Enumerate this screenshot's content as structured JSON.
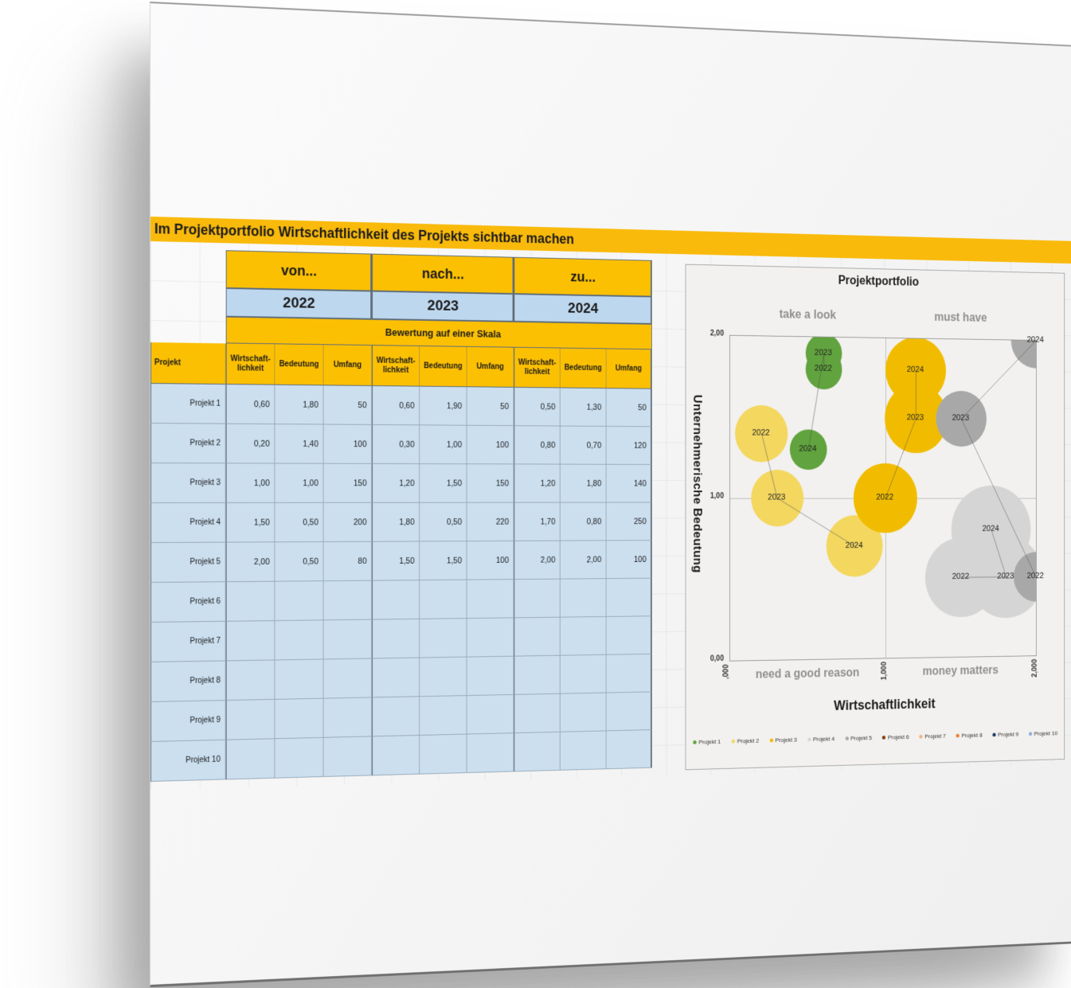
{
  "banner": {
    "title": "Im Projektportfolio Wirtschaftlichkeit des Projekts sichtbar machen",
    "color": "#f9ba0b"
  },
  "table": {
    "project_header": "Projekt",
    "scale_header": "Bewertung auf einer Skala",
    "groups": [
      {
        "label": "von...",
        "year": "2022"
      },
      {
        "label": "nach...",
        "year": "2023"
      },
      {
        "label": "zu...",
        "year": "2024"
      }
    ],
    "sub_headers": [
      "Wirtschaft-\nlichkeit",
      "Bedeutung",
      "Umfang"
    ],
    "rows": [
      {
        "project": "Projekt 1",
        "values": [
          "0,60",
          "1,80",
          "50",
          "0,60",
          "1,90",
          "50",
          "0,50",
          "1,30",
          "50"
        ]
      },
      {
        "project": "Projekt 2",
        "values": [
          "0,20",
          "1,40",
          "100",
          "0,30",
          "1,00",
          "100",
          "0,80",
          "0,70",
          "120"
        ]
      },
      {
        "project": "Projekt 3",
        "values": [
          "1,00",
          "1,00",
          "150",
          "1,20",
          "1,50",
          "150",
          "1,20",
          "1,80",
          "140"
        ]
      },
      {
        "project": "Projekt 4",
        "values": [
          "1,50",
          "0,50",
          "200",
          "1,80",
          "0,50",
          "220",
          "1,70",
          "0,80",
          "250"
        ]
      },
      {
        "project": "Projekt 5",
        "values": [
          "2,00",
          "0,50",
          "80",
          "1,50",
          "1,50",
          "100",
          "2,00",
          "2,00",
          "100"
        ]
      },
      {
        "project": "Projekt 6",
        "values": [
          "",
          "",
          "",
          "",
          "",
          "",
          "",
          "",
          ""
        ]
      },
      {
        "project": "Projekt 7",
        "values": [
          "",
          "",
          "",
          "",
          "",
          "",
          "",
          "",
          ""
        ]
      },
      {
        "project": "Projekt 8",
        "values": [
          "",
          "",
          "",
          "",
          "",
          "",
          "",
          "",
          ""
        ]
      },
      {
        "project": "Projekt 9",
        "values": [
          "",
          "",
          "",
          "",
          "",
          "",
          "",
          "",
          ""
        ]
      },
      {
        "project": "Projekt 10",
        "values": [
          "",
          "",
          "",
          "",
          "",
          "",
          "",
          "",
          ""
        ]
      }
    ],
    "colors": {
      "header_yellow": "#fcc003",
      "year_blue": "#bdd7ee",
      "body_blue": "#cbdfef"
    }
  },
  "chart_data": {
    "type": "scatter",
    "subtype": "bubble",
    "title": "Projektportfolio",
    "xlabel": "Wirtschaftlichkeit",
    "ylabel": "Unternehmerische Bedeutung",
    "xlim": [
      0,
      2
    ],
    "ylim": [
      0,
      2
    ],
    "x_ticks": [
      ",000",
      "1,000",
      "2,000"
    ],
    "y_ticks": [
      "0,00",
      "1,00",
      "2,00"
    ],
    "grid": false,
    "quadrant_dividers": {
      "x": 1.0,
      "y": 1.0
    },
    "quadrant_labels": {
      "top_left": "take a look",
      "top_right": "must have",
      "bottom_left": "need a good reason",
      "bottom_right": "money matters"
    },
    "legend_position": "bottom",
    "series": [
      {
        "name": "Projekt 1",
        "color": "#61a33e",
        "points": [
          {
            "label": "2022",
            "x": 0.6,
            "y": 1.8,
            "size": 50
          },
          {
            "label": "2023",
            "x": 0.6,
            "y": 1.9,
            "size": 50
          },
          {
            "label": "2024",
            "x": 0.5,
            "y": 1.3,
            "size": 50
          }
        ]
      },
      {
        "name": "Projekt 2",
        "color": "#f3d75f",
        "points": [
          {
            "label": "2022",
            "x": 0.2,
            "y": 1.4,
            "size": 100
          },
          {
            "label": "2023",
            "x": 0.3,
            "y": 1.0,
            "size": 100
          },
          {
            "label": "2024",
            "x": 0.8,
            "y": 0.7,
            "size": 120
          }
        ]
      },
      {
        "name": "Projekt 3",
        "color": "#f1bc00",
        "points": [
          {
            "label": "2022",
            "x": 1.0,
            "y": 1.0,
            "size": 150
          },
          {
            "label": "2023",
            "x": 1.2,
            "y": 1.5,
            "size": 150
          },
          {
            "label": "2024",
            "x": 1.2,
            "y": 1.8,
            "size": 140
          }
        ]
      },
      {
        "name": "Projekt 4",
        "color": "#d5d5d5",
        "points": [
          {
            "label": "2022",
            "x": 1.5,
            "y": 0.5,
            "size": 200
          },
          {
            "label": "2023",
            "x": 1.8,
            "y": 0.5,
            "size": 220
          },
          {
            "label": "2024",
            "x": 1.7,
            "y": 0.8,
            "size": 250
          }
        ]
      },
      {
        "name": "Projekt 5",
        "color": "#a8a8a8",
        "points": [
          {
            "label": "2022",
            "x": 2.0,
            "y": 0.5,
            "size": 80
          },
          {
            "label": "2023",
            "x": 1.5,
            "y": 1.5,
            "size": 100
          },
          {
            "label": "2024",
            "x": 2.0,
            "y": 2.0,
            "size": 100
          }
        ]
      },
      {
        "name": "Projekt 6",
        "color": "#843c0c",
        "points": []
      },
      {
        "name": "Projekt 7",
        "color": "#f4b183",
        "points": []
      },
      {
        "name": "Projekt 8",
        "color": "#ed7d31",
        "points": []
      },
      {
        "name": "Projekt 9",
        "color": "#1f3864",
        "points": []
      },
      {
        "name": "Projekt 10",
        "color": "#8faadc",
        "points": []
      }
    ]
  }
}
